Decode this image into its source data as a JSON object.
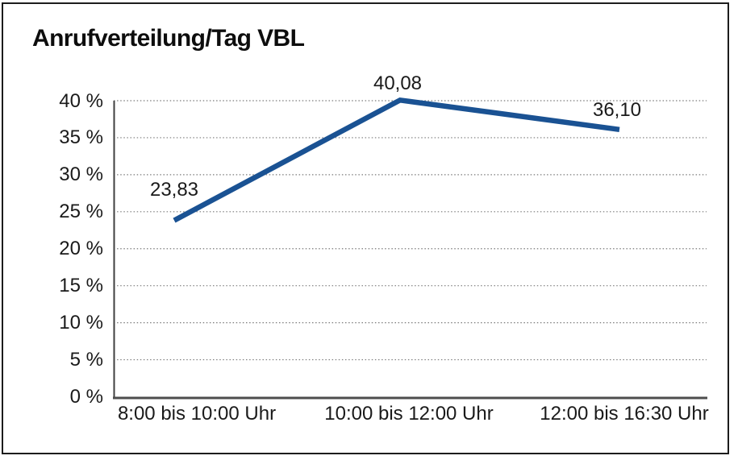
{
  "title": "Anrufverteilung/Tag VBL",
  "chart_data": {
    "type": "line",
    "title": "Anrufverteilung/Tag VBL",
    "categories": [
      "8:00 bis 10:00 Uhr",
      "10:00 bis 12:00 Uhr",
      "12:00 bis 16:30 Uhr"
    ],
    "values": [
      23.83,
      40.08,
      36.1
    ],
    "value_labels": [
      "23,83",
      "40,08",
      "36,10"
    ],
    "xlabel": "",
    "ylabel": "",
    "ylim": [
      0,
      40
    ],
    "y_ticks": [
      0,
      5,
      10,
      15,
      20,
      25,
      30,
      35,
      40
    ],
    "y_tick_labels": [
      "0 %",
      "5 %",
      "10 %",
      "15 %",
      "20 %",
      "25 %",
      "30 %",
      "35 %",
      "40 %"
    ],
    "grid": "horizontal-dotted",
    "legend_position": "none"
  },
  "colors": {
    "line": "#1A5293",
    "grid": "#7a7a7a",
    "axis": "#3f3f3f",
    "baseline": "#4d4d4d",
    "frame_border": "#1c1c1c",
    "background": "#ffffff",
    "text": "#1a1a1a"
  }
}
